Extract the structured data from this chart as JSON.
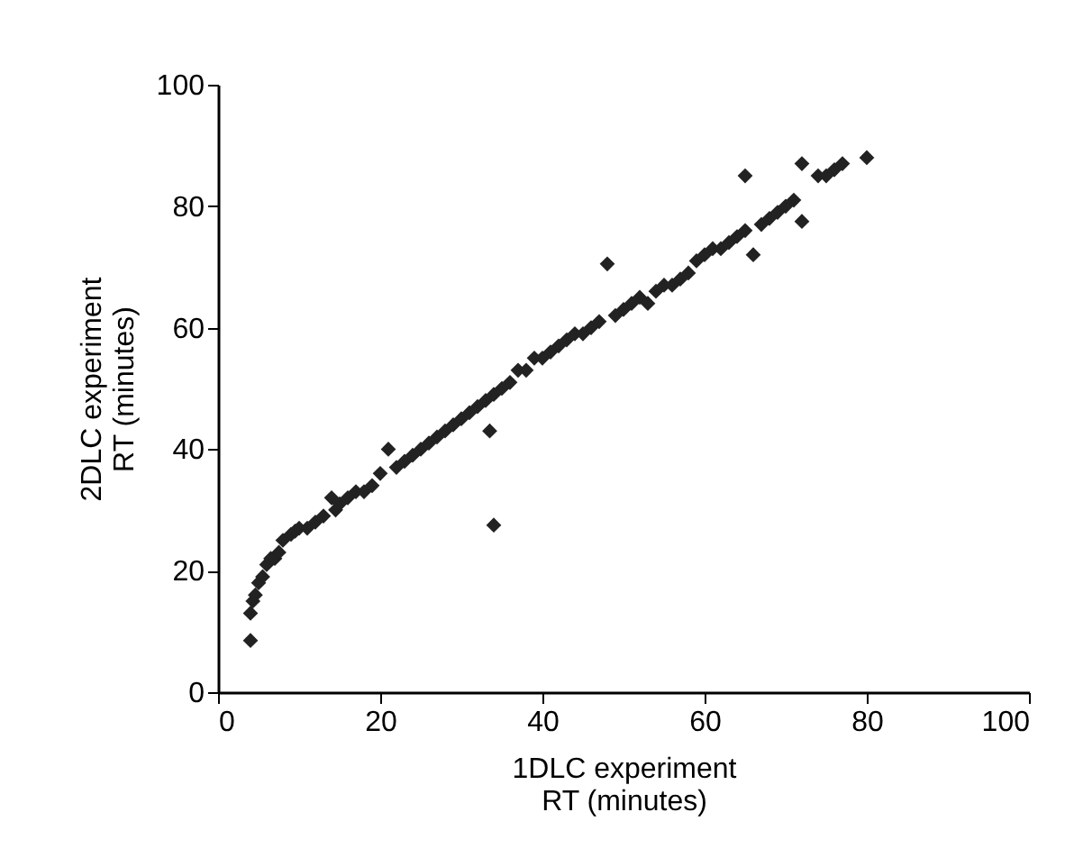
{
  "chart_data": {
    "type": "scatter",
    "xlabel": "1DLC experiment\nRT (minutes)",
    "ylabel": "2DLC experiment\nRT (minutes)",
    "xlim": [
      0,
      100
    ],
    "xticks": [
      0,
      20,
      40,
      60,
      80,
      100
    ],
    "ylim": [
      0,
      100
    ],
    "yticks": [
      0,
      20,
      40,
      60,
      80,
      100
    ],
    "grid": false,
    "marker": "diamond",
    "series": [
      {
        "color": "#222222",
        "x": [
          4,
          4,
          4.3,
          4.6,
          5,
          5.5,
          6,
          6.5,
          7,
          7.5,
          8,
          9,
          9.5,
          10,
          11,
          12,
          13,
          14,
          14.5,
          15,
          16,
          17,
          18,
          19,
          20,
          21,
          22,
          23,
          24,
          25,
          26,
          27,
          28,
          29,
          30,
          31,
          32,
          33,
          33.5,
          34,
          34,
          35,
          36,
          37,
          38,
          39,
          40,
          41,
          42,
          43,
          44,
          45,
          46,
          47,
          48,
          49,
          50,
          51,
          52,
          53,
          54,
          55,
          56,
          57,
          58,
          59,
          60,
          61,
          62,
          63,
          64,
          65,
          65,
          66,
          67,
          68,
          69,
          70,
          71,
          72,
          72,
          74,
          75,
          76,
          77,
          80
        ],
        "values": [
          8.5,
          13,
          15,
          16,
          18,
          19,
          21,
          22,
          22,
          23,
          25,
          26,
          26.5,
          27,
          27,
          28,
          29,
          32,
          30,
          31,
          32,
          33,
          33,
          34,
          36,
          40,
          37,
          38,
          39,
          40,
          41,
          42,
          43,
          44,
          45,
          46,
          47,
          48,
          43,
          27.5,
          49,
          50,
          51,
          53,
          53,
          55,
          55,
          56,
          57,
          58,
          59,
          59,
          60,
          61,
          70.5,
          62,
          63,
          64,
          65,
          64,
          66,
          67,
          67,
          68,
          69,
          71,
          72,
          73,
          73,
          74,
          75,
          76,
          85,
          72,
          77,
          78,
          79,
          80,
          81,
          87,
          77.5,
          85,
          85,
          86,
          87,
          88
        ]
      }
    ]
  }
}
